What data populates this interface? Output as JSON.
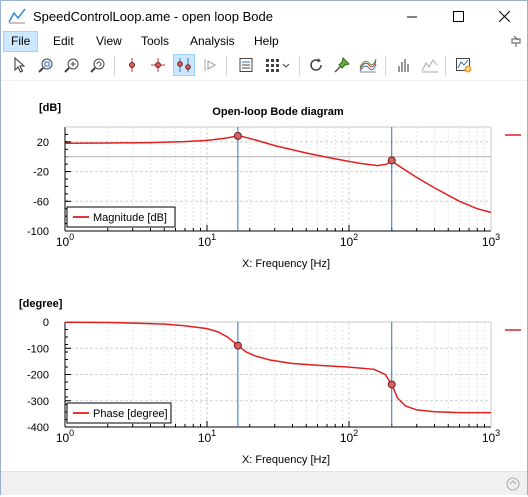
{
  "window": {
    "title": "SpeedControlLoop.ame - open loop Bode",
    "controls": [
      "minimize-icon",
      "maximize-icon",
      "close-icon"
    ]
  },
  "menu": {
    "items": [
      {
        "label": "File",
        "active": true
      },
      {
        "label": "Edit"
      },
      {
        "label": "View"
      },
      {
        "label": "Tools"
      },
      {
        "label": "Analysis"
      },
      {
        "label": "Help"
      }
    ]
  },
  "toolbar": {
    "buttons": [
      "select-pointer-icon",
      "zoom-icon",
      "zoom-out-icon",
      "zoom-reset-icon",
      "marker-icon",
      "crosshair-icon",
      "paired-markers-icon",
      "play-step-icon",
      "table-view-icon",
      "grid-menu-icon",
      "refresh-icon",
      "pin-icon",
      "curves-icon",
      "histogram-icon",
      "fit-curve-icon",
      "add-plot-icon"
    ]
  },
  "colors": {
    "curve": "#e02020",
    "cursor": "#2a72c2",
    "marker_fill": "#d86060",
    "grid": "#e6e6e6"
  },
  "chart_data": [
    {
      "type": "line",
      "title": "Open-loop Bode diagram",
      "ylabel": "[dB]",
      "xlabel": "X: Frequency [Hz]",
      "xscale": "log",
      "xlim": [
        1,
        1000
      ],
      "ylim": [
        -100,
        40
      ],
      "yticks": [
        20,
        -20,
        -60,
        -100
      ],
      "xticks": [
        {
          "base": "10",
          "exp": "0"
        },
        {
          "base": "10",
          "exp": "1"
        },
        {
          "base": "10",
          "exp": "2"
        },
        {
          "base": "10",
          "exp": "3"
        }
      ],
      "legend": "Magnitude [dB]",
      "legend_position": "bottom-left",
      "series": [
        {
          "name": "Magnitude [dB]",
          "x": [
            1,
            2,
            4,
            7,
            10,
            13,
            15,
            16.5,
            18,
            22,
            30,
            50,
            80,
            120,
            160,
            185,
            200,
            215,
            240,
            300,
            400,
            600,
            800,
            1000
          ],
          "y": [
            18,
            18.4,
            19,
            20.3,
            22,
            24.5,
            26.5,
            28,
            27,
            22.5,
            15,
            5,
            -3,
            -9,
            -12,
            -10,
            -5,
            -10,
            -16,
            -28,
            -42,
            -60,
            -70,
            -75
          ]
        }
      ],
      "cursors_x": [
        16.5,
        200
      ],
      "markers": [
        {
          "x": 16.5,
          "y": 28
        },
        {
          "x": 200,
          "y": -5
        }
      ]
    },
    {
      "type": "line",
      "ylabel": "[degree]",
      "xlabel": "X: Frequency [Hz]",
      "xscale": "log",
      "xlim": [
        1,
        1000
      ],
      "ylim": [
        -400,
        0
      ],
      "yticks": [
        0,
        -100,
        -200,
        -300,
        -400
      ],
      "xticks": [
        {
          "base": "10",
          "exp": "0"
        },
        {
          "base": "10",
          "exp": "1"
        },
        {
          "base": "10",
          "exp": "2"
        },
        {
          "base": "10",
          "exp": "3"
        }
      ],
      "legend": "Phase [degree]",
      "legend_position": "bottom-left",
      "series": [
        {
          "name": "Phase [degree]",
          "x": [
            1,
            2,
            3,
            5,
            7,
            10,
            12,
            14,
            16.5,
            19,
            22,
            28,
            40,
            60,
            100,
            150,
            180,
            200,
            220,
            250,
            300,
            400,
            600,
            1000
          ],
          "y": [
            -1,
            -2,
            -4,
            -8,
            -14,
            -25,
            -38,
            -58,
            -90,
            -115,
            -130,
            -145,
            -158,
            -165,
            -172,
            -180,
            -200,
            -238,
            -290,
            -320,
            -335,
            -342,
            -345,
            -345
          ]
        }
      ],
      "cursors_x": [
        16.5,
        200
      ],
      "markers": [
        {
          "x": 16.5,
          "y": -90
        },
        {
          "x": 200,
          "y": -238
        }
      ]
    }
  ]
}
